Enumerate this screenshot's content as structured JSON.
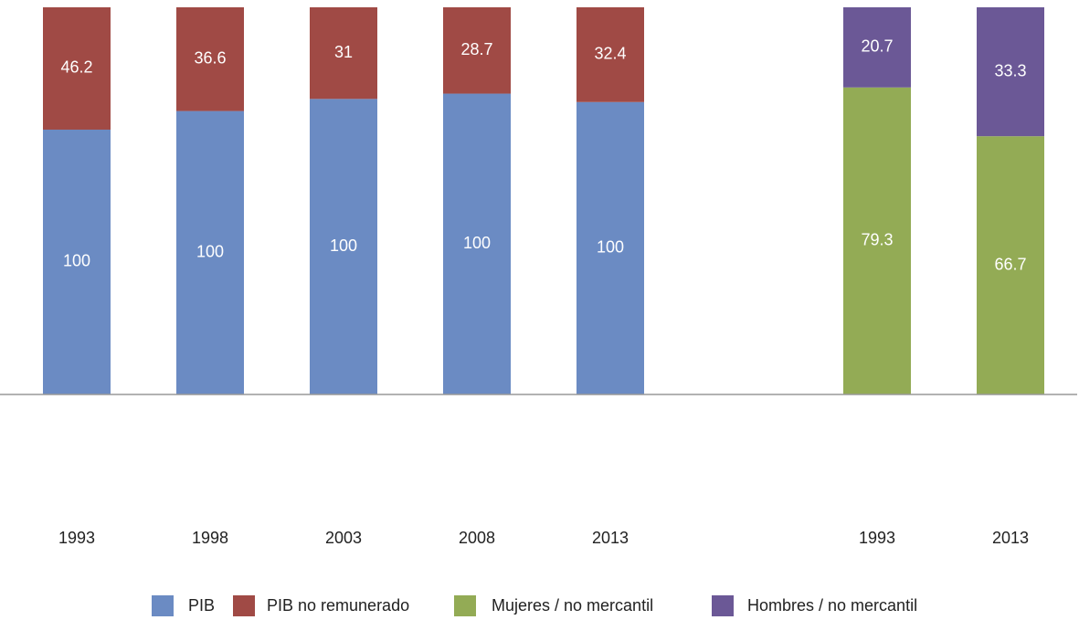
{
  "chart_data": {
    "type": "bar",
    "stacking": "percent",
    "categories": [
      "1993",
      "1998",
      "2003",
      "2008",
      "2013",
      null,
      "1993",
      "2013"
    ],
    "series": [
      {
        "name": "PIB",
        "color": "#6b8bc3",
        "values": [
          100,
          100,
          100,
          100,
          100,
          null,
          null,
          null
        ]
      },
      {
        "name": "PIB no remunerado",
        "color": "#a04a45",
        "values": [
          46.2,
          36.6,
          31,
          28.7,
          32.4,
          null,
          null,
          null
        ]
      },
      {
        "name": "Mujeres / no mercantil",
        "color": "#93ab55",
        "values": [
          null,
          null,
          null,
          null,
          null,
          null,
          79.3,
          66.7
        ]
      },
      {
        "name": "Hombres / no mercantil",
        "color": "#6b5896",
        "values": [
          null,
          null,
          null,
          null,
          null,
          null,
          20.7,
          33.3
        ]
      }
    ],
    "legend": "bottom"
  }
}
